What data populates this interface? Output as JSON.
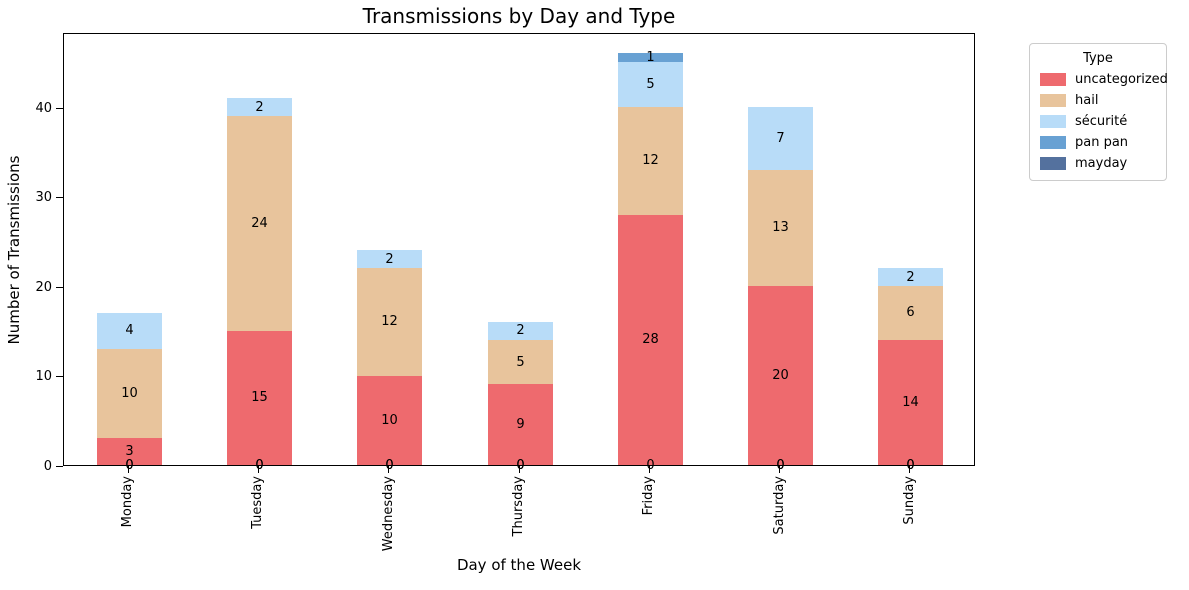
{
  "chart_data": {
    "type": "bar",
    "stacked": true,
    "title": "Transmissions by Day and Type",
    "xlabel": "Day of the Week",
    "ylabel": "Number of Transmissions",
    "legend_title": "Type",
    "legend_position": "upper right outside",
    "grid": false,
    "categories": [
      "Monday",
      "Tuesday",
      "Wednesday",
      "Thursday",
      "Friday",
      "Saturday",
      "Sunday"
    ],
    "series": [
      {
        "name": "uncategorized",
        "color": "#ee6a6e",
        "values": [
          3,
          15,
          10,
          9,
          28,
          20,
          14
        ]
      },
      {
        "name": "hail",
        "color": "#e8c49c",
        "values": [
          10,
          24,
          12,
          5,
          12,
          13,
          6
        ]
      },
      {
        "name": "sécurité",
        "color": "#b8dcf8",
        "values": [
          4,
          2,
          2,
          2,
          5,
          7,
          2
        ]
      },
      {
        "name": "pan pan",
        "color": "#68a1d3",
        "values": [
          0,
          0,
          0,
          0,
          1,
          0,
          0
        ]
      },
      {
        "name": "mayday",
        "color": "#54719e",
        "values": [
          0,
          0,
          0,
          0,
          0,
          0,
          0
        ]
      }
    ],
    "totals": [
      17,
      41,
      24,
      16,
      46,
      40,
      22
    ],
    "bar_value_labels": true,
    "yticks": [
      0,
      10,
      20,
      30,
      40
    ],
    "ylim": [
      0,
      48.4
    ],
    "axis_color": "#000000",
    "background_color": "#ffffff"
  }
}
